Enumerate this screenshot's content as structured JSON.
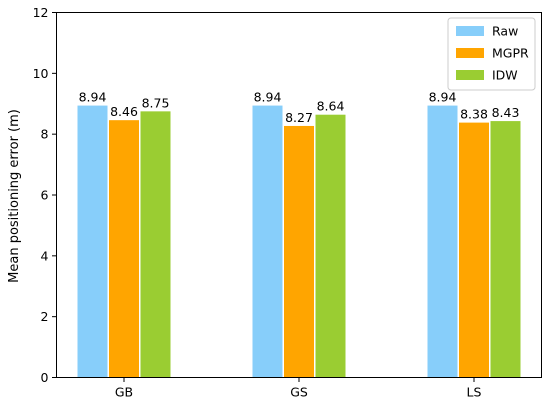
{
  "chart_data": {
    "type": "bar",
    "title": "",
    "xlabel": "",
    "ylabel": "Mean positioning error (m)",
    "categories": [
      "GB",
      "GS",
      "LS"
    ],
    "ylim": [
      0,
      12
    ],
    "yticks": [
      0,
      2,
      4,
      6,
      8,
      10,
      12
    ],
    "grid": false,
    "legend_position": "top-right",
    "series": [
      {
        "name": "Raw",
        "color": "#87CEFA",
        "values": [
          8.94,
          8.94,
          8.94
        ]
      },
      {
        "name": "MGPR",
        "color": "#FFA500",
        "values": [
          8.46,
          8.27,
          8.38
        ]
      },
      {
        "name": "IDW",
        "color": "#9ACD32",
        "values": [
          8.75,
          8.64,
          8.43
        ]
      }
    ]
  }
}
